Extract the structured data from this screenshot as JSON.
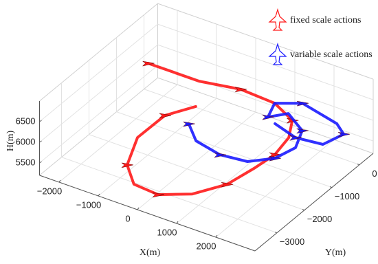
{
  "chart_data": {
    "type": "line3d",
    "xlabel": "X(m)",
    "ylabel": "Y(m)",
    "zlabel": "H(m)",
    "xlim": [
      -2500,
      3000
    ],
    "ylim": [
      -3800,
      500
    ],
    "zlim": [
      5200,
      7000
    ],
    "xticks": [
      {
        "value": -2000,
        "label": "−2000"
      },
      {
        "value": -1000,
        "label": "−1000"
      },
      0,
      1000,
      2000
    ],
    "yticks": [
      0,
      {
        "value": -1000,
        "label": "−1000"
      },
      {
        "value": -2000,
        "label": "−2000"
      },
      {
        "value": -3000,
        "label": "−3000"
      }
    ],
    "zticks": [
      5500,
      6000,
      6500
    ],
    "grid": true,
    "legend": "upper right",
    "series": [
      {
        "name": "fixed scale actions",
        "color": "#ff1a1a",
        "x": [
          -2000,
          -700,
          220,
          1130,
          1820,
          2130,
          2250,
          1820,
          1680,
          1000,
          400,
          -260,
          -530,
          -580,
          -570,
          -210
        ],
        "y": [
          -560,
          -560,
          -360,
          -420,
          -760,
          -1330,
          -2010,
          -2150,
          -2940,
          -3230,
          -3620,
          -3560,
          -3420,
          -2970,
          -1990,
          -1380
        ],
        "z": [
          6300,
          6300,
          6300,
          6300,
          6300,
          6300,
          6300,
          5900,
          5900,
          5600,
          5600,
          5600,
          5900,
          6300,
          6300,
          6300
        ]
      },
      {
        "name": "variable scale actions",
        "color": "#1a1aff",
        "x": [
          40,
          540,
          1270,
          1910,
          2330,
          2470,
          2220,
          1600,
          1310,
          1130,
          1630,
          2690,
          3040,
          2890,
          2250,
          1580
        ],
        "y": [
          -1990,
          -2440,
          -2610,
          -2520,
          -2120,
          -1570,
          -970,
          -590,
          -920,
          -420,
          -120,
          -380,
          -630,
          -1170,
          -1260,
          -1050
        ],
        "z": [
          6300,
          6300,
          6300,
          6300,
          6300,
          6300,
          6300,
          6300,
          6300,
          6300,
          6300,
          6300,
          6300,
          6300,
          6300,
          6300
        ]
      }
    ]
  }
}
